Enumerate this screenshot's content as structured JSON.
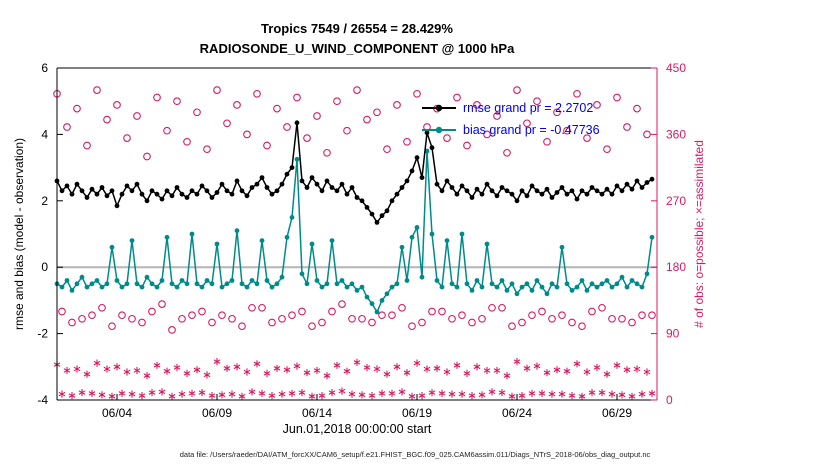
{
  "title": {
    "line1": "Tropics 7549 / 26554 = 28.429%",
    "line2": "RADIOSONDE_U_WIND_COMPONENT @ 1000 hPa"
  },
  "legend": {
    "rmse_label": "rmse grand pr = 2.2702",
    "bias_label": "bias grand pr = -0.47736"
  },
  "xlabel": "Jun.01,2018 00:00:00 start",
  "caption": "data file: /Users/raeder/DAI/ATM_forcXX/CAM6_setup/f.e21.FHIST_BGC.f09_025.CAM6assim.011/Diags_NTrS_2018-06/obs_diag_output.nc",
  "colors": {
    "rmse": "#000000",
    "bias": "#008b8b",
    "obs": "#d81b60",
    "legend_text": "#0000ee",
    "zero_line": "#b5b5b5"
  },
  "chart_data": {
    "type": "line",
    "title": "Tropics 7549 / 26554 = 28.429%",
    "subtitle": "RADIOSONDE_U_WIND_COMPONENT @ 1000 hPa",
    "x_start": "2018-06-01 00:00",
    "x_start_day": 0,
    "x_step_days": 0.25,
    "zero_line": 0,
    "x_axis": {
      "label": "Jun.01,2018 00:00:00 start",
      "tick_labels": [
        "06/04",
        "06/09",
        "06/14",
        "06/19",
        "06/24",
        "06/29"
      ],
      "tick_days": [
        3,
        8,
        13,
        18,
        23,
        28
      ],
      "range_days": [
        0,
        30
      ]
    },
    "left_axis": {
      "label": "rmse and bias (model - observation)",
      "ticks": [
        -4,
        -2,
        0,
        2,
        4,
        6
      ],
      "range": [
        -4,
        6
      ]
    },
    "right_axis": {
      "label": "# of obs: o=possible; ×=assimilated",
      "ticks": [
        0,
        90,
        180,
        270,
        360,
        450
      ],
      "range": [
        0,
        450
      ]
    },
    "series": [
      {
        "name": "possible",
        "legend": "o=possible",
        "axis": "right",
        "marker": "open-circle",
        "color": "#d81b60",
        "values": [
          415,
          120,
          370,
          105,
          395,
          110,
          345,
          115,
          420,
          125,
          380,
          100,
          400,
          115,
          355,
          110,
          385,
          105,
          330,
          120,
          410,
          130,
          365,
          95,
          405,
          110,
          350,
          115,
          390,
          120,
          340,
          105,
          420,
          115,
          375,
          110,
          400,
          100,
          360,
          125,
          415,
          125,
          345,
          105,
          395,
          110,
          370,
          115,
          410,
          120,
          355,
          100,
          385,
          105,
          335,
          120,
          405,
          130,
          365,
          110,
          420,
          110,
          380,
          105,
          390,
          115,
          340,
          115,
          400,
          125,
          350,
          100,
          415,
          105,
          370,
          120,
          395,
          120,
          355,
          110,
          410,
          115,
          345,
          105,
          400,
          110,
          360,
          125,
          385,
          125,
          335,
          100,
          420,
          105,
          375,
          115,
          405,
          120,
          350,
          110,
          390,
          115,
          365,
          105,
          415,
          100,
          355,
          120,
          400,
          125,
          340,
          110,
          410,
          110,
          370,
          105,
          395,
          115,
          360,
          115
        ]
      },
      {
        "name": "assimilated",
        "legend": "×=assimilated",
        "axis": "right",
        "marker": "asterisk",
        "color": "#d81b60",
        "values": [
          48,
          8,
          40,
          6,
          42,
          10,
          35,
          9,
          50,
          7,
          42,
          5,
          45,
          9,
          38,
          8,
          40,
          6,
          33,
          10,
          47,
          11,
          39,
          5,
          44,
          8,
          36,
          9,
          41,
          10,
          34,
          6,
          52,
          7,
          43,
          8,
          45,
          5,
          38,
          11,
          49,
          9,
          36,
          6,
          43,
          8,
          41,
          9,
          46,
          10,
          37,
          5,
          40,
          6,
          33,
          10,
          47,
          12,
          39,
          8,
          51,
          7,
          44,
          6,
          42,
          9,
          35,
          9,
          45,
          11,
          37,
          5,
          50,
          6,
          42,
          10,
          43,
          9,
          38,
          8,
          47,
          8,
          36,
          6,
          45,
          7,
          40,
          11,
          40,
          10,
          33,
          5,
          52,
          6,
          43,
          9,
          46,
          9,
          37,
          8,
          41,
          8,
          39,
          6,
          49,
          5,
          38,
          10,
          44,
          10,
          35,
          8,
          47,
          7,
          41,
          5,
          42,
          8,
          38,
          9
        ]
      },
      {
        "name": "bias",
        "legend": "bias grand pr = -0.47736",
        "grand_value": -0.47736,
        "axis": "left",
        "marker": "dot",
        "color": "#008b8b",
        "values": [
          -0.5,
          -0.6,
          -0.4,
          -0.7,
          -0.5,
          -0.3,
          -0.6,
          -0.5,
          -0.4,
          -0.6,
          -0.5,
          0.6,
          -0.4,
          -0.6,
          -0.5,
          0.8,
          -0.5,
          -0.6,
          -0.3,
          -0.5,
          -0.6,
          -0.4,
          0.9,
          -0.5,
          -0.6,
          -0.4,
          -0.5,
          1.0,
          -0.5,
          -0.6,
          -0.4,
          -0.5,
          0.7,
          -0.6,
          -0.5,
          -0.4,
          1.1,
          -0.5,
          -0.6,
          -0.4,
          -0.5,
          0.8,
          -0.4,
          -0.6,
          -0.5,
          -0.3,
          0.9,
          1.5,
          3.25,
          -0.2,
          -0.5,
          0.7,
          -0.4,
          -0.6,
          -0.5,
          0.8,
          -0.5,
          -0.4,
          -0.6,
          -0.5,
          -0.7,
          -0.6,
          -0.9,
          -1.1,
          -1.35,
          -1.0,
          -0.8,
          -0.6,
          -0.5,
          0.6,
          -0.4,
          0.9,
          1.2,
          -0.3,
          3.5,
          1.0,
          -0.4,
          -0.6,
          0.8,
          -0.5,
          -0.6,
          1.0,
          -0.5,
          -0.7,
          -0.4,
          -0.6,
          0.7,
          -0.5,
          -0.6,
          -0.4,
          -0.7,
          -0.5,
          -0.8,
          -0.6,
          -0.5,
          -0.7,
          -0.4,
          -0.6,
          -0.8,
          -0.5,
          -0.6,
          0.6,
          -0.5,
          -0.7,
          -0.6,
          -0.4,
          -0.7,
          -0.5,
          -0.6,
          -0.5,
          -0.4,
          -0.6,
          -0.5,
          -0.3,
          -0.6,
          -0.4,
          -0.5,
          -0.6,
          -0.2,
          0.9
        ]
      },
      {
        "name": "rmse",
        "legend": "rmse grand pr = 2.2702",
        "grand_value": 2.2702,
        "axis": "left",
        "marker": "dot",
        "color": "#000000",
        "values": [
          2.6,
          2.3,
          2.45,
          2.2,
          2.5,
          2.3,
          2.1,
          2.35,
          2.2,
          2.4,
          2.15,
          2.3,
          1.85,
          2.2,
          2.45,
          2.3,
          2.5,
          2.2,
          2.0,
          2.3,
          2.2,
          2.05,
          2.3,
          2.15,
          2.4,
          2.2,
          2.1,
          2.3,
          2.2,
          2.45,
          2.3,
          2.1,
          2.25,
          2.5,
          2.3,
          2.2,
          2.6,
          2.3,
          2.15,
          2.4,
          2.5,
          2.7,
          2.4,
          2.2,
          2.3,
          2.5,
          2.8,
          3.0,
          4.35,
          2.6,
          2.4,
          2.7,
          2.5,
          2.3,
          2.6,
          2.4,
          2.3,
          2.5,
          2.2,
          2.4,
          2.1,
          2.0,
          1.8,
          1.6,
          1.35,
          1.55,
          1.7,
          2.0,
          2.2,
          2.4,
          2.6,
          2.9,
          3.3,
          2.7,
          4.05,
          3.6,
          2.5,
          2.3,
          2.6,
          2.4,
          2.2,
          2.45,
          2.3,
          2.1,
          2.35,
          2.2,
          2.5,
          2.3,
          2.15,
          2.4,
          2.3,
          2.2,
          2.0,
          2.3,
          2.15,
          2.45,
          2.3,
          2.2,
          2.35,
          2.1,
          2.25,
          2.4,
          2.2,
          2.3,
          2.05,
          2.3,
          2.2,
          2.4,
          2.3,
          2.2,
          2.35,
          2.2,
          2.45,
          2.3,
          2.5,
          2.35,
          2.6,
          2.4,
          2.55,
          2.65
        ]
      }
    ]
  }
}
